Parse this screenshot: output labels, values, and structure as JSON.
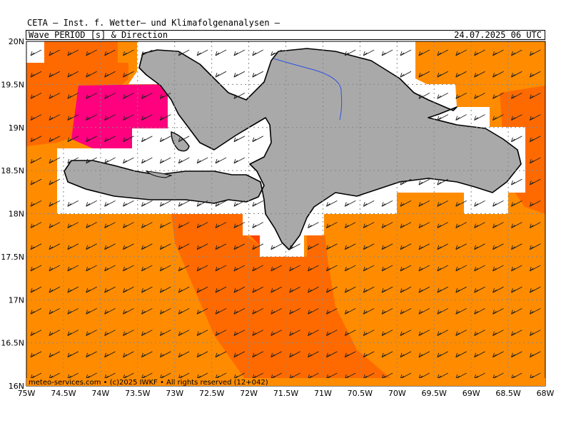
{
  "header": {
    "title": "CETA — Inst. f. Wetter— und Klimafolgenanalysen —",
    "subtitle": "Wave PERIOD [s] & Direction",
    "datetime": "24.07.2025 06 UTC"
  },
  "map": {
    "lon_range": [
      -75,
      -68
    ],
    "lat_range": [
      16,
      20
    ],
    "lon_ticks": [
      "75W",
      "74.5W",
      "74W",
      "73.5W",
      "73W",
      "72.5W",
      "72W",
      "71.5W",
      "71W",
      "70.5W",
      "70W",
      "69.5W",
      "69W",
      "68.5W",
      "68W"
    ],
    "lat_ticks": [
      "16N",
      "16.5N",
      "17N",
      "17.5N",
      "18N",
      "18.5N",
      "19N",
      "19.5N",
      "20N"
    ],
    "grid": true,
    "arrow_direction": "from northeast (pointing west-southwest)",
    "colors": {
      "land": "#a9a9a9",
      "period_low": "#ff8c00",
      "period_mid": "#ff6a00",
      "period_high": "#ff4500",
      "period_max": "#ff007f",
      "no_data": "#ffffff",
      "river": "#3050e0"
    },
    "credit": "meteo-services.com • (c)2025 IWKF • All rights reserved (12+042)"
  }
}
